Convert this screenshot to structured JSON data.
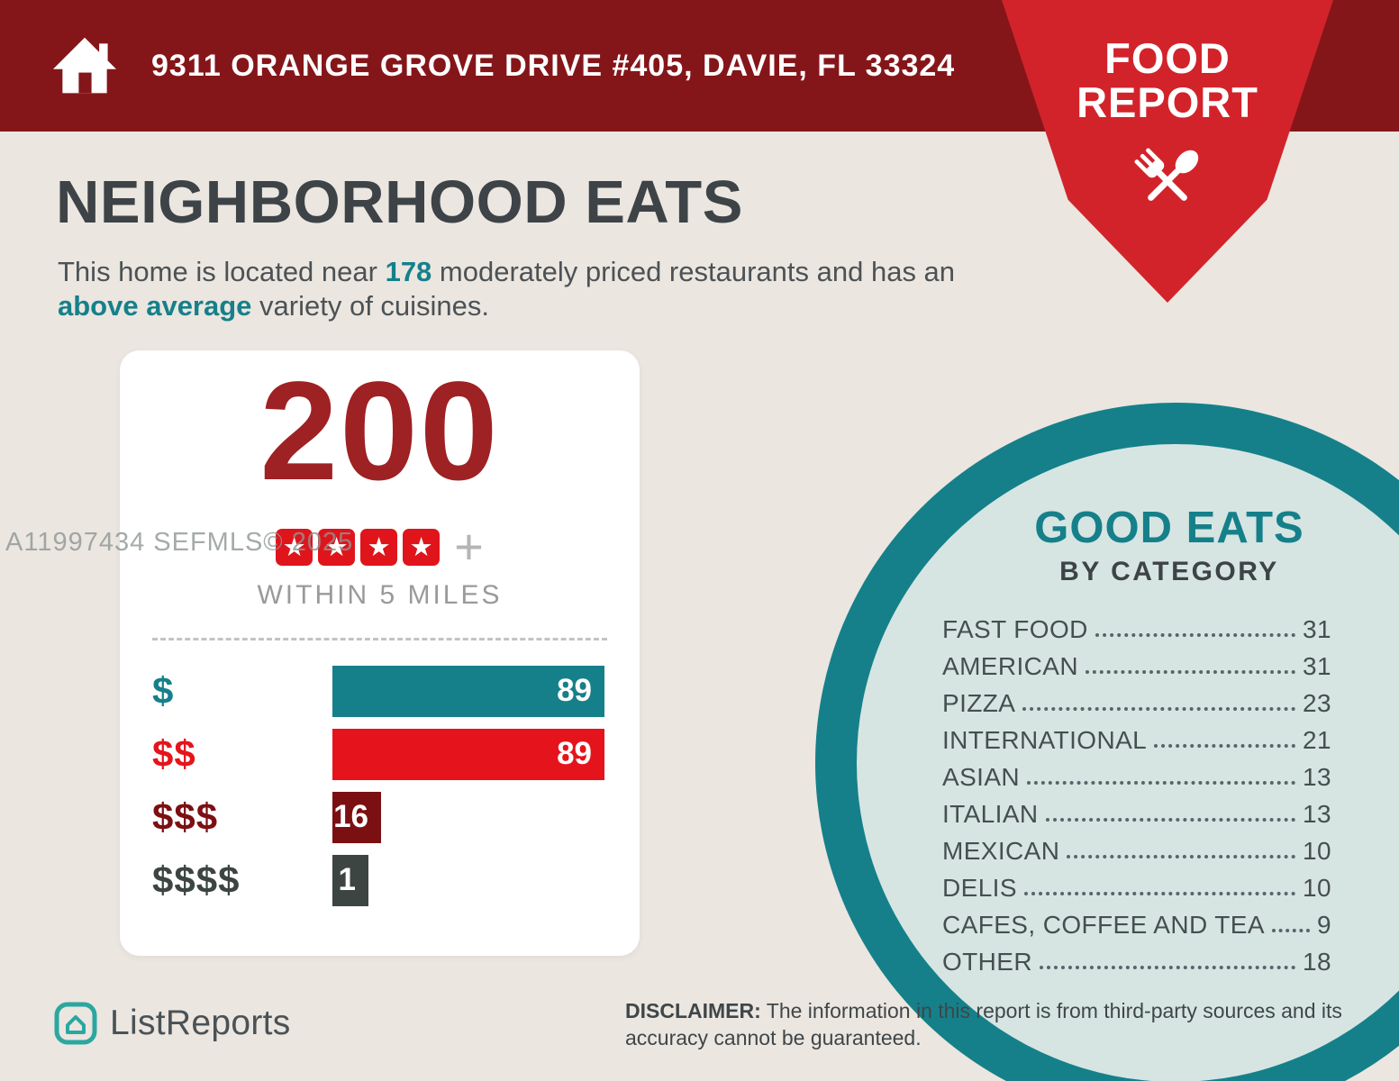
{
  "header": {
    "address": "9311 ORANGE GROVE DRIVE #405, DAVIE, FL 33324"
  },
  "ribbon": {
    "line1": "FOOD",
    "line2": "REPORT"
  },
  "intro": {
    "title": "NEIGHBORHOOD EATS",
    "text_part1": "This home is located near ",
    "highlight1": "178",
    "text_part2": " moderately priced restaurants and has an ",
    "highlight2": "above average",
    "text_part3": " variety of cuisines."
  },
  "summary_card": {
    "total": "200",
    "stars": 4,
    "plus_label": "+",
    "radius_label": "WITHIN 5 MILES"
  },
  "chart_data": [
    {
      "type": "bar",
      "orientation": "horizontal",
      "title": "",
      "categories": [
        "$",
        "$$",
        "$$$",
        "$$$$"
      ],
      "values": [
        89,
        89,
        16,
        1
      ],
      "colors": [
        "#15808A",
        "#E5141C",
        "#7B1013",
        "#3D4543"
      ],
      "total_label": "200",
      "star_rating": 4,
      "footnote": "WITHIN 5 MILES",
      "xlim": [
        0,
        89
      ],
      "value_labels_inside_bars": true
    },
    {
      "type": "table",
      "title": "GOOD EATS",
      "subtitle": "BY CATEGORY",
      "categories": [
        "FAST FOOD",
        "AMERICAN",
        "PIZZA",
        "INTERNATIONAL",
        "ASIAN",
        "ITALIAN",
        "MEXICAN",
        "DELIS",
        "CAFES, COFFEE AND TEA",
        "OTHER"
      ],
      "values": [
        31,
        31,
        23,
        21,
        13,
        13,
        10,
        10,
        9,
        18
      ]
    }
  ],
  "good_eats": {
    "title": "GOOD EATS",
    "subtitle": "BY CATEGORY"
  },
  "footer": {
    "brand": "ListReports",
    "disclaimer_label": "DISCLAIMER:",
    "disclaimer_text": "The information in this report is from third-party sources and its accuracy cannot be guaranteed."
  },
  "watermark": "A11997434 SEFMLS© 2025",
  "colors": {
    "topbar_maroon": "#84161A",
    "ribbon_red": "#D2232B",
    "teal": "#15808A",
    "bright_red": "#E5141C",
    "dark_maroon": "#7B1013",
    "dark_gray": "#3D4543",
    "background": "#EBE6E0",
    "circle_inner": "#D6E5E2"
  },
  "icons": {
    "header_left": "home-icon",
    "ribbon": "fork-and-spoon-icon",
    "rating": "star-icon",
    "brand": "listreports-logo-icon"
  }
}
